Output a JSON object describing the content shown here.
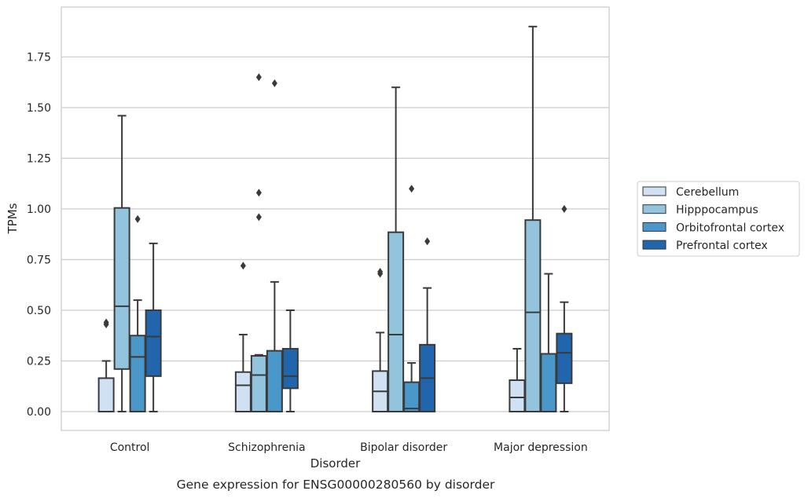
{
  "chart_data": {
    "type": "box",
    "title": "",
    "caption": "Gene expression for ENSG00000280560 by disorder",
    "xlabel": "Disorder",
    "ylabel": "TPMs",
    "ylim": [
      -0.09,
      1.99
    ],
    "yticks": [
      "0.00",
      "0.25",
      "0.50",
      "0.75",
      "1.00",
      "1.25",
      "1.50",
      "1.75"
    ],
    "grid": true,
    "legend_position": "right",
    "categories": [
      "Control",
      "Schizophrenia",
      "Bipolar disorder",
      "Major depression"
    ],
    "series": [
      {
        "name": "Cerebellum",
        "color": "#cfe1f2",
        "boxes": [
          {
            "whislo": 0.0,
            "q1": 0.0,
            "med": 0.0,
            "q3": 0.165,
            "whishi": 0.25,
            "fliers": [
              0.43,
              0.44
            ]
          },
          {
            "whislo": 0.0,
            "q1": 0.0,
            "med": 0.13,
            "q3": 0.195,
            "whishi": 0.38,
            "fliers": [
              0.72
            ]
          },
          {
            "whislo": 0.0,
            "q1": 0.0,
            "med": 0.1,
            "q3": 0.2,
            "whishi": 0.39,
            "fliers": [
              0.68,
              0.69
            ]
          },
          {
            "whislo": 0.0,
            "q1": 0.0,
            "med": 0.07,
            "q3": 0.155,
            "whishi": 0.31,
            "fliers": []
          }
        ]
      },
      {
        "name": "Hipppocampus",
        "color": "#93c4de",
        "boxes": [
          {
            "whislo": 0.0,
            "q1": 0.21,
            "med": 0.52,
            "q3": 1.005,
            "whishi": 1.46,
            "fliers": []
          },
          {
            "whislo": 0.0,
            "q1": 0.0,
            "med": 0.18,
            "q3": 0.275,
            "whishi": 0.28,
            "fliers": [
              0.96,
              1.08,
              1.65
            ]
          },
          {
            "whislo": 0.0,
            "q1": 0.0,
            "med": 0.38,
            "q3": 0.885,
            "whishi": 1.6,
            "fliers": []
          },
          {
            "whislo": 0.0,
            "q1": 0.0,
            "med": 0.49,
            "q3": 0.945,
            "whishi": 1.9,
            "fliers": []
          }
        ]
      },
      {
        "name": "Orbitofrontal cortex",
        "color": "#4a98c9",
        "boxes": [
          {
            "whislo": 0.0,
            "q1": 0.0,
            "med": 0.27,
            "q3": 0.375,
            "whishi": 0.55,
            "fliers": [
              0.95
            ]
          },
          {
            "whislo": 0.0,
            "q1": 0.0,
            "med": 0.0,
            "q3": 0.3,
            "whishi": 0.64,
            "fliers": [
              1.62
            ]
          },
          {
            "whislo": 0.0,
            "q1": 0.0,
            "med": 0.015,
            "q3": 0.145,
            "whishi": 0.24,
            "fliers": [
              1.1
            ]
          },
          {
            "whislo": 0.0,
            "q1": 0.0,
            "med": 0.0,
            "q3": 0.285,
            "whishi": 0.68,
            "fliers": []
          }
        ]
      },
      {
        "name": "Prefrontal cortex",
        "color": "#2166ac",
        "boxes": [
          {
            "whislo": 0.0,
            "q1": 0.175,
            "med": 0.37,
            "q3": 0.5,
            "whishi": 0.83,
            "fliers": []
          },
          {
            "whislo": 0.0,
            "q1": 0.115,
            "med": 0.175,
            "q3": 0.31,
            "whishi": 0.5,
            "fliers": []
          },
          {
            "whislo": 0.0,
            "q1": 0.0,
            "med": 0.165,
            "q3": 0.33,
            "whishi": 0.61,
            "fliers": [
              0.84
            ]
          },
          {
            "whislo": 0.0,
            "q1": 0.14,
            "med": 0.29,
            "q3": 0.385,
            "whishi": 0.54,
            "fliers": [
              1.0
            ]
          }
        ]
      }
    ]
  }
}
